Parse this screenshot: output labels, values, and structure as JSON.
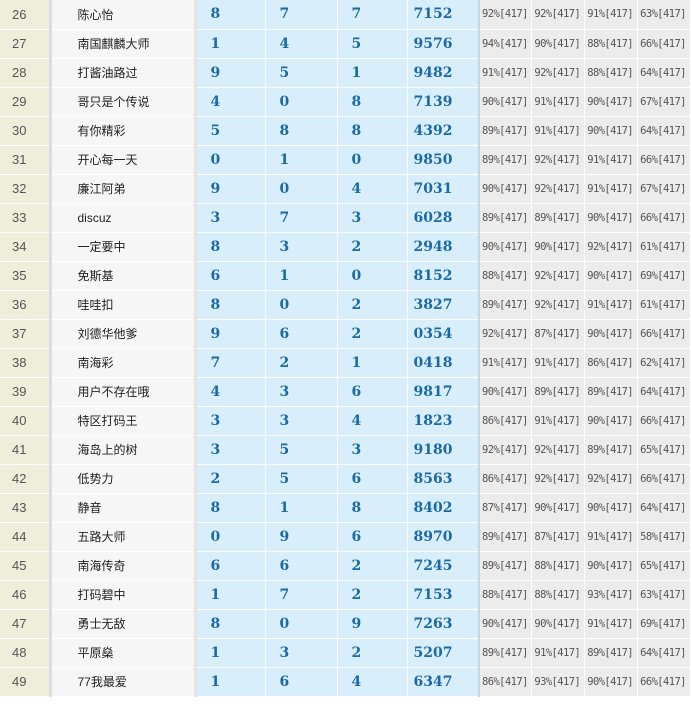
{
  "rows": [
    {
      "no": "26",
      "name": "陈心怡",
      "a": "8",
      "b": "7",
      "c": "7",
      "code": "7152",
      "p": [
        "92%[417]",
        "92%[417]",
        "91%[417]",
        "63%[417]"
      ]
    },
    {
      "no": "27",
      "name": "南国麒麟大师",
      "a": "1",
      "b": "4",
      "c": "5",
      "code": "9576",
      "p": [
        "94%[417]",
        "90%[417]",
        "88%[417]",
        "66%[417]"
      ]
    },
    {
      "no": "28",
      "name": "打酱油路过",
      "a": "9",
      "b": "5",
      "c": "1",
      "code": "9482",
      "p": [
        "91%[417]",
        "92%[417]",
        "88%[417]",
        "64%[417]"
      ]
    },
    {
      "no": "29",
      "name": "哥只是个传说",
      "a": "4",
      "b": "0",
      "c": "8",
      "code": "7139",
      "p": [
        "90%[417]",
        "91%[417]",
        "90%[417]",
        "67%[417]"
      ]
    },
    {
      "no": "30",
      "name": "有你精彩",
      "a": "5",
      "b": "8",
      "c": "8",
      "code": "4392",
      "p": [
        "89%[417]",
        "91%[417]",
        "90%[417]",
        "64%[417]"
      ]
    },
    {
      "no": "31",
      "name": "开心每一天",
      "a": "0",
      "b": "1",
      "c": "0",
      "code": "9850",
      "p": [
        "89%[417]",
        "92%[417]",
        "91%[417]",
        "66%[417]"
      ]
    },
    {
      "no": "32",
      "name": "廉江阿弟",
      "a": "9",
      "b": "0",
      "c": "4",
      "code": "7031",
      "p": [
        "90%[417]",
        "92%[417]",
        "91%[417]",
        "67%[417]"
      ]
    },
    {
      "no": "33",
      "name": "discuz",
      "a": "3",
      "b": "7",
      "c": "3",
      "code": "6028",
      "p": [
        "89%[417]",
        "89%[417]",
        "90%[417]",
        "66%[417]"
      ]
    },
    {
      "no": "34",
      "name": "一定要中",
      "a": "8",
      "b": "3",
      "c": "2",
      "code": "2948",
      "p": [
        "90%[417]",
        "90%[417]",
        "92%[417]",
        "61%[417]"
      ]
    },
    {
      "no": "35",
      "name": "免斯基",
      "a": "6",
      "b": "1",
      "c": "0",
      "code": "8152",
      "p": [
        "88%[417]",
        "92%[417]",
        "90%[417]",
        "69%[417]"
      ]
    },
    {
      "no": "36",
      "name": "哇哇扣",
      "a": "8",
      "b": "0",
      "c": "2",
      "code": "3827",
      "p": [
        "89%[417]",
        "92%[417]",
        "91%[417]",
        "61%[417]"
      ]
    },
    {
      "no": "37",
      "name": "刘德华他爹",
      "a": "9",
      "b": "6",
      "c": "2",
      "code": "0354",
      "p": [
        "92%[417]",
        "87%[417]",
        "90%[417]",
        "66%[417]"
      ]
    },
    {
      "no": "38",
      "name": "南海彩",
      "a": "7",
      "b": "2",
      "c": "1",
      "code": "0418",
      "p": [
        "91%[417]",
        "91%[417]",
        "86%[417]",
        "62%[417]"
      ]
    },
    {
      "no": "39",
      "name": "用户不存在哦",
      "a": "4",
      "b": "3",
      "c": "6",
      "code": "9817",
      "p": [
        "90%[417]",
        "89%[417]",
        "89%[417]",
        "64%[417]"
      ]
    },
    {
      "no": "40",
      "name": "特区打码王",
      "a": "3",
      "b": "3",
      "c": "4",
      "code": "1823",
      "p": [
        "86%[417]",
        "91%[417]",
        "90%[417]",
        "66%[417]"
      ]
    },
    {
      "no": "41",
      "name": "海岛上的树",
      "a": "3",
      "b": "5",
      "c": "3",
      "code": "9180",
      "p": [
        "92%[417]",
        "92%[417]",
        "89%[417]",
        "65%[417]"
      ]
    },
    {
      "no": "42",
      "name": "低势力",
      "a": "2",
      "b": "5",
      "c": "6",
      "code": "8563",
      "p": [
        "86%[417]",
        "92%[417]",
        "92%[417]",
        "66%[417]"
      ]
    },
    {
      "no": "43",
      "name": "静音",
      "a": "8",
      "b": "1",
      "c": "8",
      "code": "8402",
      "p": [
        "87%[417]",
        "90%[417]",
        "90%[417]",
        "64%[417]"
      ]
    },
    {
      "no": "44",
      "name": "五路大师",
      "a": "0",
      "b": "9",
      "c": "6",
      "code": "8970",
      "p": [
        "89%[417]",
        "87%[417]",
        "91%[417]",
        "58%[417]"
      ]
    },
    {
      "no": "45",
      "name": "南海传奇",
      "a": "6",
      "b": "6",
      "c": "2",
      "code": "7245",
      "p": [
        "89%[417]",
        "88%[417]",
        "90%[417]",
        "65%[417]"
      ]
    },
    {
      "no": "46",
      "name": "打码碧中",
      "a": "1",
      "b": "7",
      "c": "2",
      "code": "7153",
      "p": [
        "88%[417]",
        "88%[417]",
        "93%[417]",
        "63%[417]"
      ]
    },
    {
      "no": "47",
      "name": "勇士无敌",
      "a": "8",
      "b": "0",
      "c": "9",
      "code": "7263",
      "p": [
        "90%[417]",
        "90%[417]",
        "91%[417]",
        "69%[417]"
      ]
    },
    {
      "no": "48",
      "name": "平原燊",
      "a": "1",
      "b": "3",
      "c": "2",
      "code": "5207",
      "p": [
        "89%[417]",
        "91%[417]",
        "89%[417]",
        "64%[417]"
      ]
    },
    {
      "no": "49",
      "name": "77我最爱",
      "a": "1",
      "b": "6",
      "c": "4",
      "code": "6347",
      "p": [
        "86%[417]",
        "93%[417]",
        "90%[417]",
        "66%[417]"
      ]
    }
  ]
}
